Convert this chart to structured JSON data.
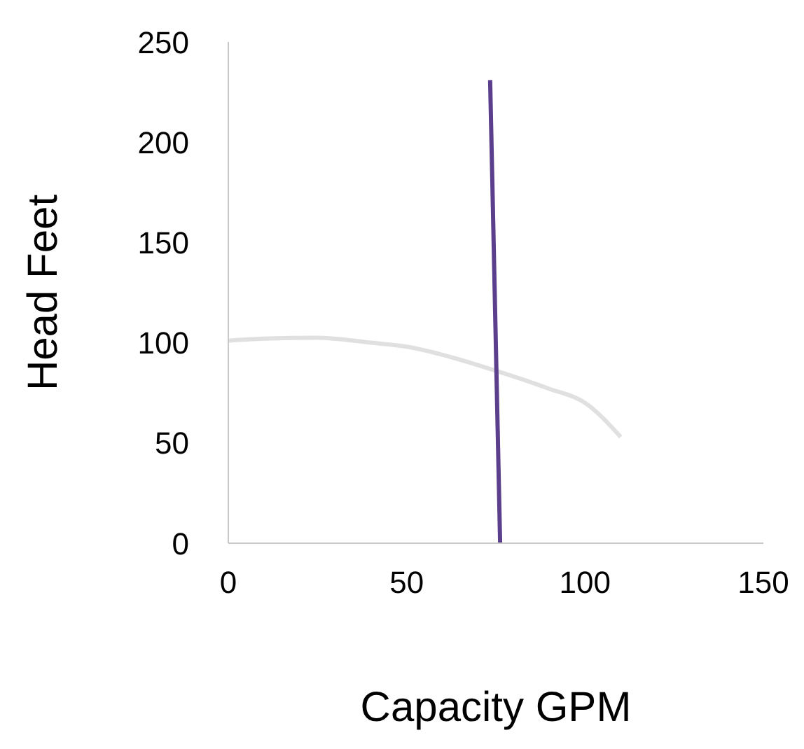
{
  "chart_data": {
    "type": "line",
    "xlabel": "Capacity GPM",
    "ylabel": "Head Feet",
    "xlim": [
      0,
      150
    ],
    "xticks": [
      0,
      50,
      100,
      150
    ],
    "ylim": [
      0,
      250
    ],
    "yticks": [
      0,
      50,
      100,
      150,
      200,
      250
    ],
    "grid": false,
    "legend": false,
    "marker": "none",
    "line_style": "solid",
    "series": [
      {
        "color": "#e0e0e0",
        "x": [
          0,
          10,
          25,
          40,
          50,
          60,
          75,
          90,
          100,
          110
        ],
        "values": [
          101,
          102,
          102.5,
          100,
          98,
          94,
          86,
          77,
          70,
          53
        ]
      },
      {
        "color": "#5b3f8c",
        "x": [
          73.4,
          76.2
        ],
        "values": [
          231,
          0
        ]
      }
    ]
  }
}
